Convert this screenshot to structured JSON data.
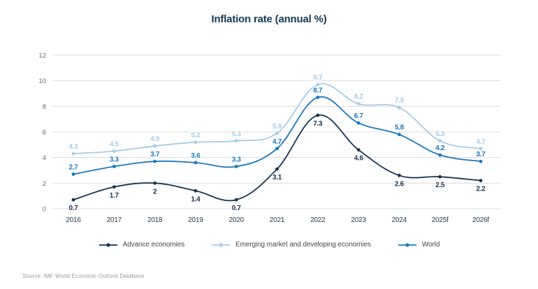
{
  "chart": {
    "title": "Inflation rate (annual %)"
  },
  "source": "Source: IMF World Economic Outlook Database",
  "chart_data": {
    "type": "line",
    "title": "Inflation rate (annual %)",
    "categories": [
      "2016",
      "2017",
      "2018",
      "2019",
      "2020",
      "2021",
      "2022",
      "2023",
      "2024",
      "2025f",
      "2026f"
    ],
    "series": [
      {
        "name": "Advance economies",
        "color": "#17334f",
        "values": [
          0.7,
          1.7,
          2,
          1.4,
          0.7,
          3.1,
          7.3,
          4.6,
          2.6,
          2.5,
          2.2
        ],
        "label_position": "below"
      },
      {
        "name": "Emerging market and developing economies",
        "color": "#a6cce9",
        "values": [
          4.3,
          4.5,
          4.9,
          5.2,
          5.3,
          5.9,
          9.7,
          8.2,
          7.9,
          5.3,
          4.7
        ],
        "label_position": "above"
      },
      {
        "name": "World",
        "color": "#1878be",
        "values": [
          2.7,
          3.3,
          3.7,
          3.6,
          3.3,
          4.7,
          8.7,
          6.7,
          5.8,
          4.2,
          3.7
        ],
        "label_position": "above"
      }
    ],
    "xlabel": "",
    "ylabel": "",
    "ylim": [
      0,
      12
    ],
    "yticks": [
      0,
      2,
      4,
      6,
      8,
      10,
      12
    ],
    "grid": true,
    "legend_position": "bottom",
    "grid_color": "#dcdcdc"
  }
}
